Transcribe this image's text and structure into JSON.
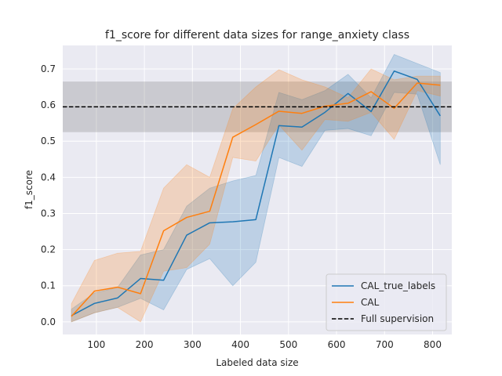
{
  "chart_data": {
    "type": "line",
    "title": "f1_score for different data sizes for range_anxiety class",
    "xlabel": "Labeled data size",
    "ylabel": "f1_score",
    "xlim": [
      30,
      840
    ],
    "ylim": [
      -0.035,
      0.765
    ],
    "xticks": [
      100,
      200,
      300,
      400,
      500,
      600,
      700,
      800
    ],
    "yticks": [
      0.0,
      0.1,
      0.2,
      0.3,
      0.4,
      0.5,
      0.6,
      0.7
    ],
    "grid": true,
    "legend_position": "lower-right",
    "reference_line": {
      "name": "Full supervision",
      "value": 0.595,
      "band": [
        0.525,
        0.665
      ],
      "color": "#000000"
    },
    "series": [
      {
        "name": "CAL_true_labels",
        "color": "#1f77b4",
        "x": [
          48,
          96,
          144,
          192,
          240,
          288,
          336,
          384,
          432,
          480,
          528,
          576,
          624,
          672,
          720,
          768,
          816
        ],
        "values": [
          0.017,
          0.051,
          0.066,
          0.12,
          0.115,
          0.24,
          0.274,
          0.277,
          0.283,
          0.543,
          0.539,
          0.58,
          0.632,
          0.582,
          0.694,
          0.671,
          0.57
        ],
        "lower": [
          0.0,
          0.025,
          0.04,
          0.065,
          0.033,
          0.145,
          0.175,
          0.1,
          0.165,
          0.455,
          0.43,
          0.53,
          0.535,
          0.515,
          0.635,
          0.63,
          0.435
        ],
        "upper": [
          0.035,
          0.08,
          0.095,
          0.185,
          0.2,
          0.32,
          0.37,
          0.39,
          0.405,
          0.635,
          0.615,
          0.64,
          0.685,
          0.62,
          0.74,
          0.715,
          0.69
        ]
      },
      {
        "name": "CAL",
        "color": "#ff7f0e",
        "x": [
          48,
          96,
          144,
          192,
          240,
          288,
          336,
          384,
          432,
          480,
          528,
          576,
          624,
          672,
          720,
          768,
          816
        ],
        "values": [
          0.015,
          0.085,
          0.096,
          0.078,
          0.252,
          0.289,
          0.306,
          0.511,
          0.546,
          0.583,
          0.577,
          0.597,
          0.605,
          0.637,
          0.591,
          0.661,
          0.655
        ],
        "lower": [
          0.0,
          0.025,
          0.04,
          0.0,
          0.14,
          0.15,
          0.215,
          0.455,
          0.445,
          0.545,
          0.475,
          0.56,
          0.555,
          0.58,
          0.505,
          0.64,
          0.625
        ],
        "upper": [
          0.05,
          0.17,
          0.19,
          0.195,
          0.37,
          0.435,
          0.4,
          0.59,
          0.65,
          0.698,
          0.67,
          0.65,
          0.62,
          0.7,
          0.67,
          0.68,
          0.68
        ]
      }
    ]
  }
}
